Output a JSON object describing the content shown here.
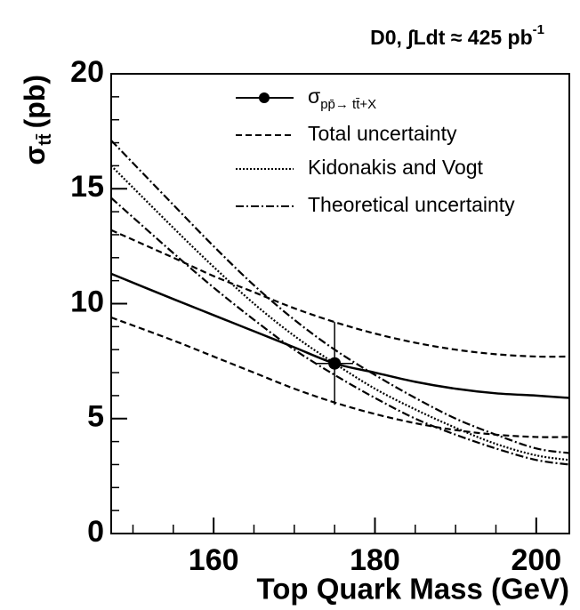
{
  "chart_data": {
    "type": "line",
    "annotation": "D0, ∫Ldt ≈ 425 pb",
    "annotation_sup": "-1",
    "x_label": "Top Quark Mass (GeV)",
    "y_label": "σ",
    "y_label_sub": "tt̄",
    "y_label_unit": "(pb)",
    "xlim": [
      147.3,
      204.1
    ],
    "ylim": [
      0,
      20
    ],
    "xticks": [
      160,
      180,
      200
    ],
    "yticks": [
      0,
      5,
      10,
      15,
      20
    ],
    "xminorticks": [
      150,
      155,
      165,
      170,
      175,
      185,
      190,
      195
    ],
    "yminorticks": [
      1,
      2,
      3,
      4,
      6,
      7,
      8,
      9,
      11,
      12,
      13,
      14,
      16,
      17,
      18,
      19
    ],
    "x": [
      147.3,
      155,
      160,
      165,
      170,
      175,
      180,
      185,
      190,
      195,
      200,
      204.1
    ],
    "series": [
      {
        "name": "σ",
        "name_sub": "pp̄→ tt̄+X",
        "color": "#000000",
        "style": "solid",
        "values": [
          11.3,
          10.2,
          9.5,
          8.8,
          8.1,
          7.4,
          7.0,
          6.6,
          6.3,
          6.1,
          6.0,
          5.9
        ]
      },
      {
        "name": "Total uncertainty",
        "color": "#000000",
        "style": "dashed",
        "upper": [
          13.2,
          12.0,
          11.2,
          10.5,
          9.8,
          9.2,
          8.7,
          8.3,
          8.0,
          7.8,
          7.7,
          7.7
        ],
        "lower": [
          9.4,
          8.4,
          7.7,
          7.0,
          6.3,
          5.7,
          5.2,
          4.8,
          4.5,
          4.3,
          4.2,
          4.2
        ]
      },
      {
        "name": "Kidonakis and Vogt",
        "color": "#000000",
        "style": "dotted",
        "values": [
          16.0,
          13.3,
          11.6,
          10.0,
          8.6,
          7.4,
          6.3,
          5.4,
          4.6,
          3.9,
          3.4,
          3.2
        ]
      },
      {
        "name": "Theoretical uncertainty",
        "color": "#000000",
        "style": "dashdot",
        "upper": [
          17.1,
          14.3,
          12.5,
          10.8,
          9.3,
          8.0,
          6.9,
          5.9,
          5.0,
          4.3,
          3.7,
          3.5
        ],
        "lower": [
          14.6,
          12.2,
          10.7,
          9.3,
          8.0,
          6.9,
          5.9,
          5.0,
          4.3,
          3.7,
          3.2,
          3.0
        ]
      }
    ],
    "point": {
      "x": 175,
      "y": 7.4,
      "xerr": 2.3,
      "yerr": 1.8
    }
  }
}
